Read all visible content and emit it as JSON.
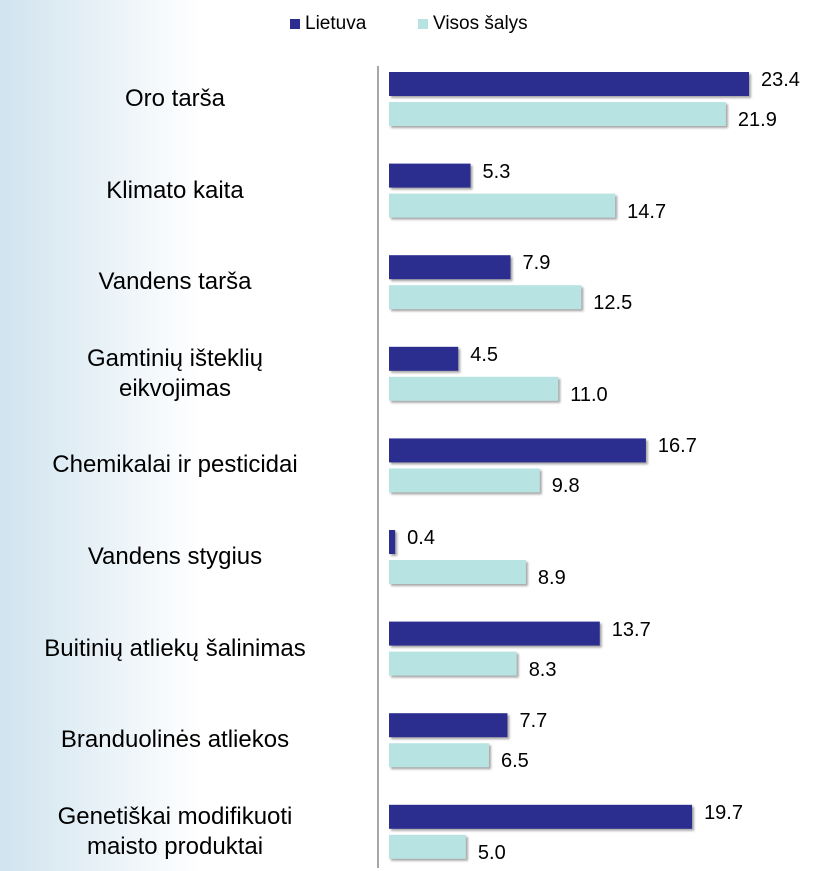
{
  "chart_data": {
    "type": "bar",
    "orientation": "horizontal",
    "categories": [
      "Oro tarša",
      "Klimato kaita",
      "Vandens tarša",
      "Gamtinių išteklių\neikvojimas",
      "Chemikalai ir pesticidai",
      "Vandens stygius",
      "Buitinių atliekų šalinimas",
      "Branduolinės atliekos",
      "Genetiškai modifikuoti\nmaisto produktai"
    ],
    "series": [
      {
        "name": "Lietuva",
        "color": "#2b2d8f",
        "values": [
          23.4,
          5.3,
          7.9,
          4.5,
          16.7,
          0.4,
          13.7,
          7.7,
          19.7
        ],
        "value_labels": [
          "23.4",
          "5.3",
          "7.9",
          "4.5",
          "16.7",
          "0.4",
          "13.7",
          "7.7",
          "19.7"
        ]
      },
      {
        "name": "Visos šalys",
        "color": "#b8e3e3",
        "values": [
          21.9,
          14.7,
          12.5,
          11.0,
          9.8,
          8.9,
          8.3,
          6.5,
          5.0
        ],
        "value_labels": [
          "21.9",
          "14.7",
          "12.5",
          "11.0",
          "9.8",
          "8.9",
          "8.3",
          "6.5",
          "5.0"
        ]
      }
    ],
    "legend": "top"
  }
}
